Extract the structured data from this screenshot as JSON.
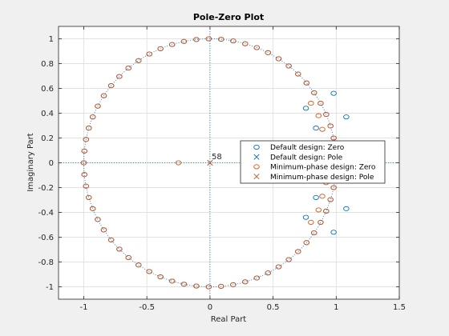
{
  "chart_data": {
    "type": "scatter",
    "title": "Pole-Zero Plot",
    "xlabel": "Real Part",
    "ylabel": "Imaginary Part",
    "xlim": [
      -1.2,
      1.5
    ],
    "ylim": [
      -1.1,
      1.1
    ],
    "xticks": [
      "-1",
      "-0.5",
      "0",
      "0.5",
      "1",
      "1.5"
    ],
    "yticks": [
      "1",
      "0.8",
      "0.6",
      "0.4",
      "0.2",
      "0",
      "-0.2",
      "-0.4",
      "-0.6",
      "-0.8",
      "-1"
    ],
    "grid": true,
    "unit_circle": true,
    "multiplicity_annotation": "58",
    "legend_location": "right",
    "colors": {
      "default": "#0072BD",
      "minphase": "#D95319"
    },
    "series": [
      {
        "name": "Default design: Zero",
        "marker": "circle",
        "color": "#0072BD",
        "points": [
          [
            1.0,
            0.0
          ],
          [
            0.995,
            0.1
          ],
          [
            0.98,
            0.2
          ],
          [
            0.955,
            0.297
          ],
          [
            0.921,
            0.39
          ],
          [
            0.877,
            0.48
          ],
          [
            0.825,
            0.565
          ],
          [
            0.765,
            0.644
          ],
          [
            0.698,
            0.716
          ],
          [
            0.624,
            0.781
          ],
          [
            0.544,
            0.839
          ],
          [
            0.46,
            0.888
          ],
          [
            0.371,
            0.929
          ],
          [
            0.279,
            0.96
          ],
          [
            0.184,
            0.983
          ],
          [
            0.088,
            0.996
          ],
          [
            -0.01,
            1.0
          ],
          [
            -0.108,
            0.994
          ],
          [
            -0.206,
            0.979
          ],
          [
            -0.3,
            0.954
          ],
          [
            -0.392,
            0.92
          ],
          [
            -0.481,
            0.877
          ],
          [
            -0.566,
            0.824
          ],
          [
            -0.646,
            0.764
          ],
          [
            -0.718,
            0.696
          ],
          [
            -0.783,
            0.622
          ],
          [
            -0.841,
            0.541
          ],
          [
            -0.889,
            0.457
          ],
          [
            -0.929,
            0.37
          ],
          [
            -0.96,
            0.28
          ],
          [
            -0.982,
            0.188
          ],
          [
            -0.995,
            0.095
          ],
          [
            -1.0,
            0.0
          ],
          [
            -0.995,
            -0.095
          ],
          [
            -0.982,
            -0.188
          ],
          [
            -0.96,
            -0.28
          ],
          [
            -0.929,
            -0.37
          ],
          [
            -0.889,
            -0.457
          ],
          [
            -0.841,
            -0.541
          ],
          [
            -0.783,
            -0.622
          ],
          [
            -0.718,
            -0.696
          ],
          [
            -0.646,
            -0.764
          ],
          [
            -0.566,
            -0.824
          ],
          [
            -0.481,
            -0.877
          ],
          [
            -0.392,
            -0.92
          ],
          [
            -0.3,
            -0.954
          ],
          [
            -0.206,
            -0.979
          ],
          [
            -0.108,
            -0.994
          ],
          [
            -0.01,
            -1.0
          ],
          [
            0.088,
            -0.996
          ],
          [
            0.184,
            -0.983
          ],
          [
            0.279,
            -0.96
          ],
          [
            0.371,
            -0.929
          ],
          [
            0.46,
            -0.888
          ],
          [
            0.544,
            -0.839
          ],
          [
            0.624,
            -0.781
          ],
          [
            0.698,
            -0.716
          ],
          [
            0.765,
            -0.644
          ],
          [
            0.825,
            -0.565
          ],
          [
            0.877,
            -0.48
          ],
          [
            0.921,
            -0.39
          ],
          [
            0.955,
            -0.297
          ],
          [
            0.98,
            -0.2
          ],
          [
            0.995,
            -0.1
          ],
          [
            0.76,
            0.44
          ],
          [
            0.84,
            0.28
          ],
          [
            0.98,
            0.56
          ],
          [
            1.08,
            0.37
          ],
          [
            0.76,
            -0.44
          ],
          [
            0.84,
            -0.28
          ],
          [
            0.98,
            -0.56
          ],
          [
            1.08,
            -0.37
          ]
        ]
      },
      {
        "name": "Default design: Pole",
        "marker": "x",
        "color": "#0072BD",
        "points": [
          [
            0.0,
            0.0
          ]
        ]
      },
      {
        "name": "Minimum-phase design: Zero",
        "marker": "circle",
        "color": "#D95319",
        "points": [
          [
            0.995,
            0.1
          ],
          [
            0.98,
            0.2
          ],
          [
            0.955,
            0.297
          ],
          [
            0.921,
            0.39
          ],
          [
            0.877,
            0.48
          ],
          [
            0.825,
            0.565
          ],
          [
            0.765,
            0.644
          ],
          [
            0.698,
            0.716
          ],
          [
            0.624,
            0.781
          ],
          [
            0.544,
            0.839
          ],
          [
            0.46,
            0.888
          ],
          [
            0.371,
            0.929
          ],
          [
            0.279,
            0.96
          ],
          [
            0.184,
            0.983
          ],
          [
            0.088,
            0.996
          ],
          [
            -0.01,
            1.0
          ],
          [
            -0.108,
            0.994
          ],
          [
            -0.206,
            0.979
          ],
          [
            -0.3,
            0.954
          ],
          [
            -0.392,
            0.92
          ],
          [
            -0.481,
            0.877
          ],
          [
            -0.566,
            0.824
          ],
          [
            -0.646,
            0.764
          ],
          [
            -0.718,
            0.696
          ],
          [
            -0.783,
            0.622
          ],
          [
            -0.841,
            0.541
          ],
          [
            -0.889,
            0.457
          ],
          [
            -0.929,
            0.37
          ],
          [
            -0.96,
            0.28
          ],
          [
            -0.982,
            0.188
          ],
          [
            -0.995,
            0.095
          ],
          [
            -1.0,
            0.0
          ],
          [
            -0.995,
            -0.095
          ],
          [
            -0.982,
            -0.188
          ],
          [
            -0.96,
            -0.28
          ],
          [
            -0.929,
            -0.37
          ],
          [
            -0.889,
            -0.457
          ],
          [
            -0.841,
            -0.541
          ],
          [
            -0.783,
            -0.622
          ],
          [
            -0.718,
            -0.696
          ],
          [
            -0.646,
            -0.764
          ],
          [
            -0.566,
            -0.824
          ],
          [
            -0.481,
            -0.877
          ],
          [
            -0.392,
            -0.92
          ],
          [
            -0.3,
            -0.954
          ],
          [
            -0.206,
            -0.979
          ],
          [
            -0.108,
            -0.994
          ],
          [
            -0.01,
            -1.0
          ],
          [
            0.088,
            -0.996
          ],
          [
            0.184,
            -0.983
          ],
          [
            0.279,
            -0.96
          ],
          [
            0.371,
            -0.929
          ],
          [
            0.46,
            -0.888
          ],
          [
            0.544,
            -0.839
          ],
          [
            0.624,
            -0.781
          ],
          [
            0.698,
            -0.716
          ],
          [
            0.765,
            -0.644
          ],
          [
            0.825,
            -0.565
          ],
          [
            0.877,
            -0.48
          ],
          [
            0.921,
            -0.39
          ],
          [
            0.955,
            -0.297
          ],
          [
            0.98,
            -0.2
          ],
          [
            0.995,
            -0.1
          ],
          [
            0.8,
            0.48
          ],
          [
            0.86,
            0.38
          ],
          [
            0.89,
            0.27
          ],
          [
            0.92,
            0.16
          ],
          [
            0.8,
            -0.48
          ],
          [
            0.86,
            -0.38
          ],
          [
            0.89,
            -0.27
          ],
          [
            0.92,
            -0.16
          ],
          [
            -0.25,
            0.0
          ]
        ]
      },
      {
        "name": "Minimum-phase design: Pole",
        "marker": "x",
        "color": "#D95319",
        "points": [
          [
            0.0,
            0.0
          ]
        ]
      }
    ]
  }
}
